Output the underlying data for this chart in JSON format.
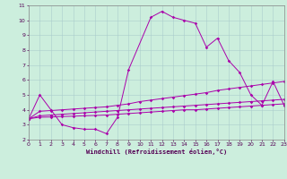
{
  "xlabel": "Windchill (Refroidissement éolien,°C)",
  "background_color": "#cceedd",
  "grid_color": "#aacccc",
  "line_color": "#aa00aa",
  "xlim": [
    0,
    23
  ],
  "ylim": [
    2,
    11
  ],
  "xticks": [
    0,
    1,
    2,
    3,
    4,
    5,
    6,
    7,
    8,
    9,
    10,
    11,
    12,
    13,
    14,
    15,
    16,
    17,
    18,
    19,
    20,
    21,
    22,
    23
  ],
  "yticks": [
    2,
    3,
    4,
    5,
    6,
    7,
    8,
    9,
    10,
    11
  ],
  "series": [
    {
      "x": [
        0,
        1,
        2,
        3,
        4,
        5,
        6,
        7,
        8,
        9,
        11,
        12,
        13,
        14,
        15,
        16,
        17,
        18,
        19,
        20,
        21,
        22,
        23
      ],
      "y": [
        3.4,
        5.0,
        4.0,
        3.0,
        2.8,
        2.7,
        2.7,
        2.4,
        3.5,
        6.7,
        10.2,
        10.6,
        10.2,
        10.0,
        9.8,
        8.2,
        8.8,
        7.3,
        6.5,
        5.0,
        4.3,
        5.9,
        4.3
      ]
    },
    {
      "x": [
        0,
        1,
        2,
        3,
        4,
        5,
        6,
        7,
        8,
        9,
        10,
        11,
        12,
        13,
        14,
        15,
        16,
        17,
        18,
        19,
        20,
        21,
        22,
        23
      ],
      "y": [
        3.4,
        3.9,
        3.95,
        4.0,
        4.05,
        4.1,
        4.15,
        4.2,
        4.3,
        4.4,
        4.55,
        4.65,
        4.75,
        4.85,
        4.95,
        5.05,
        5.15,
        5.3,
        5.4,
        5.5,
        5.6,
        5.7,
        5.8,
        5.9
      ]
    },
    {
      "x": [
        0,
        1,
        2,
        3,
        4,
        5,
        6,
        7,
        8,
        9,
        10,
        11,
        12,
        13,
        14,
        15,
        16,
        17,
        18,
        19,
        20,
        21,
        22,
        23
      ],
      "y": [
        3.4,
        3.6,
        3.65,
        3.7,
        3.75,
        3.8,
        3.85,
        3.9,
        3.95,
        4.0,
        4.05,
        4.1,
        4.15,
        4.2,
        4.25,
        4.3,
        4.35,
        4.4,
        4.45,
        4.5,
        4.55,
        4.6,
        4.65,
        4.7
      ]
    },
    {
      "x": [
        0,
        1,
        2,
        3,
        4,
        5,
        6,
        7,
        8,
        9,
        10,
        11,
        12,
        13,
        14,
        15,
        16,
        17,
        18,
        19,
        20,
        21,
        22,
        23
      ],
      "y": [
        3.4,
        3.5,
        3.52,
        3.55,
        3.57,
        3.6,
        3.62,
        3.65,
        3.7,
        3.75,
        3.8,
        3.85,
        3.9,
        3.95,
        4.0,
        4.0,
        4.05,
        4.1,
        4.15,
        4.2,
        4.25,
        4.3,
        4.35,
        4.4
      ]
    }
  ]
}
